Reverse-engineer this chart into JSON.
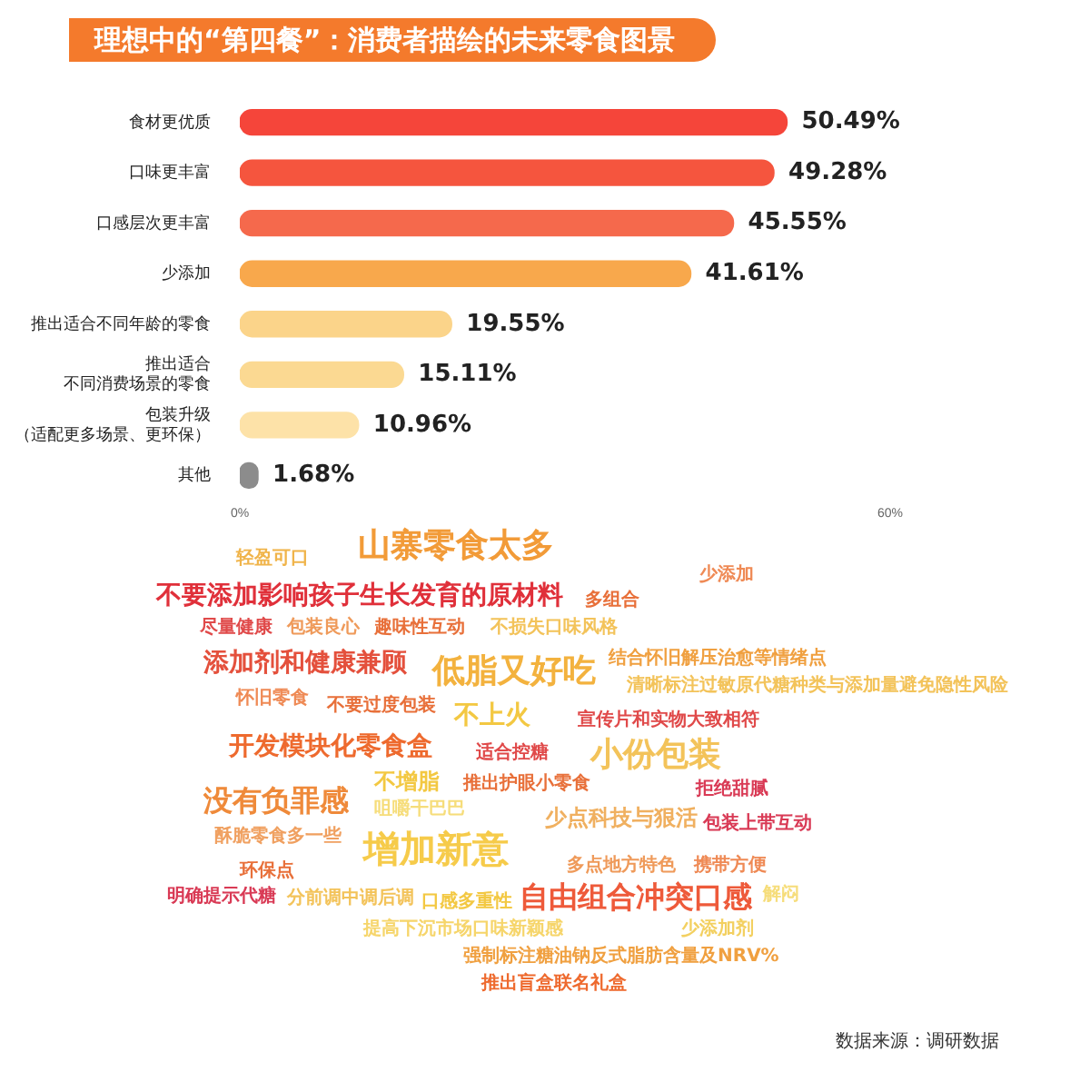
{
  "chart_data": {
    "type": "bar",
    "orientation": "horizontal",
    "title": "理想中的“第四餐”：消费者描绘的未来零食图景",
    "categories": [
      "食材更优质",
      "口味更丰富",
      "口感层次更丰富",
      "少添加",
      "推出适合不同年龄的零食",
      "推出适合不同消费场景的零食",
      "包装升级（适配更多场景、更环保）",
      "其他"
    ],
    "values": [
      50.49,
      49.28,
      45.55,
      41.61,
      19.55,
      15.11,
      10.96,
      1.68
    ],
    "value_labels": [
      "50.49%",
      "49.28%",
      "45.55%",
      "41.61%",
      "19.55%",
      "15.11%",
      "10.96%",
      "1.68%"
    ],
    "colors": [
      "#f5453a",
      "#f5553e",
      "#f5694c",
      "#f8a84c",
      "#fbd48a",
      "#fbd992",
      "#fde2a8",
      "#8c8c8c"
    ],
    "xlim": [
      0,
      60
    ],
    "xticks": [
      {
        "value": 0,
        "label": "0%"
      },
      {
        "value": 60,
        "label": "60%"
      }
    ],
    "grid": false,
    "legend": false,
    "annotations": [
      "轻盈可口",
      "山寨零食太多",
      "不要添加影响孩子生长发育的原材料",
      "多组合",
      "少添加",
      "尽量健康",
      "包装良心",
      "趣味性互动",
      "不损失口味风格",
      "添加剂和健康兼顾",
      "低脂又好吃",
      "结合怀旧解压治愈等情绪点",
      "清晰标注过敏原代糖种类与添加量避免隐性风险",
      "怀旧零食",
      "不要过度包装",
      "不上火",
      "宣传片和实物大致相符",
      "开发模块化零食盒",
      "适合控糖",
      "小份包装",
      "不增脂",
      "推出护眼小零食",
      "拒绝甜腻",
      "没有负罪感",
      "咀嚼干巴巴",
      "少点科技与狠活",
      "包装上带互动",
      "酥脆零食多一些",
      "增加新意",
      "多点地方特色",
      "携带方便",
      "环保点",
      "明确提示代糖",
      "分前调中调后调",
      "口感多重性",
      "自由组合冲突口感",
      "解闷",
      "提高下沉市场口味新颖感",
      "少添加剂",
      "强制标注糖油钠反式脂肪含量及NRV%",
      "推出盲盒联名礼盒",
      "数据来源：调研数据"
    ]
  }
}
